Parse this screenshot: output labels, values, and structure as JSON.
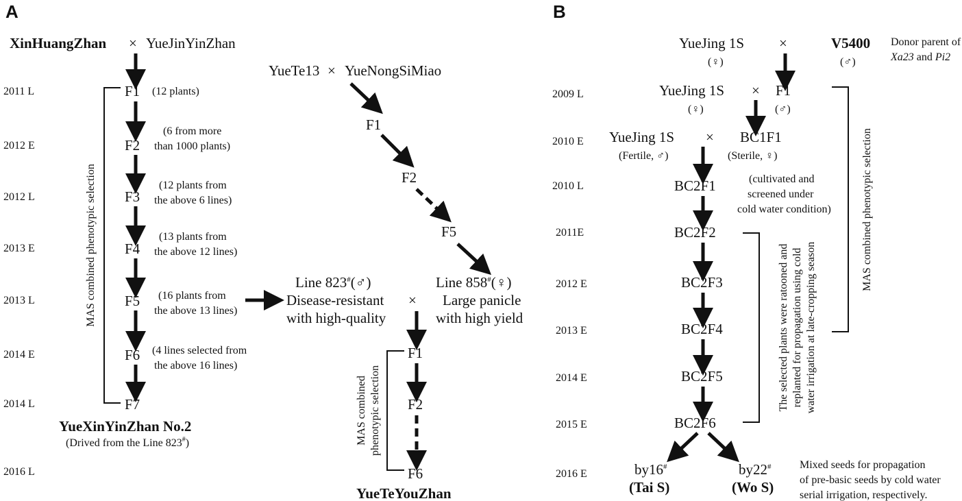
{
  "panelA": {
    "label": "A",
    "top_cross": {
      "p1": "XinHuangZhan",
      "x": "×",
      "p2": "YueJinYinZhan"
    },
    "years": [
      "2011 L",
      "2012 E",
      "2012 L",
      "2013 E",
      "2013 L",
      "2014 E",
      "2014 L",
      "2016 L"
    ],
    "gens": [
      "F1",
      "F2",
      "F3",
      "F4",
      "F5",
      "F6",
      "F7"
    ],
    "notes": [
      [
        "(12 plants)"
      ],
      [
        "(6 from more",
        "than 1000 plants)"
      ],
      [
        "(12 plants from",
        "the above 6 lines)"
      ],
      [
        "(13 plants from",
        "the above 12 lines)"
      ],
      [
        "(16 plants from",
        "the above 13 lines)"
      ],
      [
        "(4 lines selected from",
        "the above 16 lines)"
      ]
    ],
    "bracket_label": "MAS combined phenotypic selection",
    "result_name": "YueXinYinZhan No.2",
    "result_note": "(Drived from the Line 823",
    "result_note_sup": "#",
    "result_note_end": ")",
    "right_cross": {
      "p1": "YueTe13",
      "x": "×",
      "p2": "YueNongSiMiao"
    },
    "right_gens": [
      "F1",
      "F2",
      "F5"
    ],
    "line823": {
      "name": "Line 823",
      "sup": "#",
      "sex": "(♂)",
      "desc1": "Disease-resistant",
      "desc2": "with high-quality"
    },
    "line858": {
      "name": "Line 858",
      "sup": "#",
      "sex": "(♀)",
      "desc1": "Large panicle",
      "desc2": "with high yield"
    },
    "cross_x": "×",
    "bottom_gens": [
      "F1",
      "F2",
      "F6"
    ],
    "bottom_bracket_label1": "MAS combined",
    "bottom_bracket_label2": "phenotypic selection",
    "bottom_result": "YueTeYouZhan"
  },
  "panelB": {
    "label": "B",
    "years": [
      "2009 L",
      "2010 E",
      "2010 L",
      "2011E",
      "2012 E",
      "2013 E",
      "2014 E",
      "2015 E",
      "2016 E"
    ],
    "row1": {
      "p1": "YueJing 1S",
      "p1_sex": "(♀)",
      "x": "×",
      "p2": "V5400",
      "p2_sex": "(♂)"
    },
    "donor1": "Donor parent of",
    "donor_g1": "Xa23",
    "donor_and": " and ",
    "donor_g2": "Pi2",
    "row2": {
      "p1": "YueJing 1S",
      "p1_sex": "(♀)",
      "x": "×",
      "p2": "F1",
      "p2_sex": "(♂)"
    },
    "row3": {
      "p1": "YueJing 1S",
      "p1_sex": "(Fertile, ♂)",
      "x": "×",
      "p2": "BC1F1",
      "p2_sex": "(Sterile, ♀)"
    },
    "cold_note": [
      "(cultivated and",
      "screened under",
      "cold water condition)"
    ],
    "gens": [
      "BC2F1",
      "BC2F2",
      "BC2F3",
      "BC2F4",
      "BC2F5",
      "BC2F6"
    ],
    "bracket1_label": "MAS combined phenotypic selection",
    "bracket2_label": [
      "The selected plants were ratooned and",
      "replanted for propagation using cold",
      "water irrigation at late-cropping season"
    ],
    "by16": "by16",
    "by16_sup": "#",
    "by16_name": "(Tai S)",
    "by22": "by22",
    "by22_sup": "#",
    "by22_name": "(Wo S)",
    "final_note": [
      "Mixed seeds for propagation",
      "of pre-basic seeds by cold water",
      "serial irrigation, respectively."
    ]
  }
}
